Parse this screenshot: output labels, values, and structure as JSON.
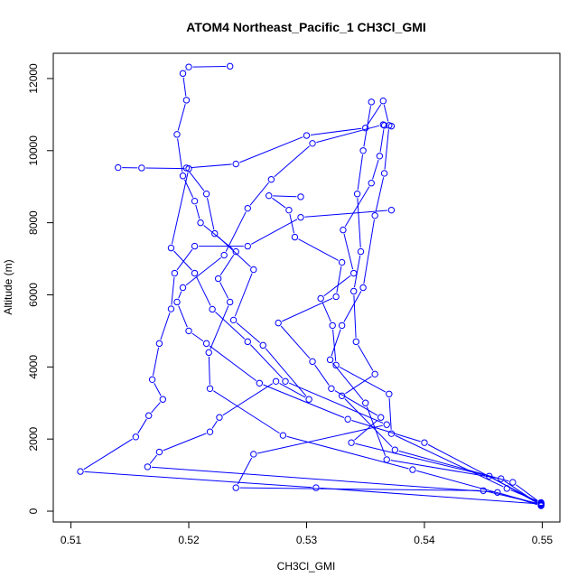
{
  "chart_data": {
    "type": "line",
    "title": "ATOM4 Northeast_Pacific_1 CH3Cl_GMI",
    "xlabel": "CH3Cl_GMI",
    "ylabel": "Altitude (m)",
    "xlim": [
      0.5085,
      0.5515
    ],
    "ylim": [
      -300,
      12700
    ],
    "x_ticks": [
      0.51,
      0.52,
      0.53,
      0.54,
      0.55
    ],
    "x_tick_labels": [
      "0.51",
      "0.52",
      "0.53",
      "0.54",
      "0.55"
    ],
    "y_ticks": [
      0,
      2000,
      4000,
      6000,
      8000,
      10000,
      12000
    ],
    "y_tick_labels": [
      "0",
      "2000",
      "4000",
      "6000",
      "8000",
      "10000",
      "12000"
    ],
    "grid": false,
    "legend": "none",
    "marker": "open-circle",
    "color": "#0000ff",
    "series": [
      {
        "values": [
          [
            0.5499,
            150
          ],
          [
            0.5462,
            520
          ],
          [
            0.5165,
            1230
          ],
          [
            0.5175,
            1640
          ],
          [
            0.5218,
            2200
          ],
          [
            0.5226,
            2600
          ],
          [
            0.5274,
            3600
          ],
          [
            0.5302,
            3100
          ],
          [
            0.5263,
            4600
          ],
          [
            0.5238,
            5300
          ],
          [
            0.5255,
            6700
          ],
          [
            0.5222,
            7700
          ],
          [
            0.5215,
            8800
          ],
          [
            0.5198,
            9520
          ],
          [
            0.524,
            9630
          ],
          [
            0.53,
            10420
          ],
          [
            0.535,
            10630
          ],
          [
            0.5365,
            11380
          ],
          [
            0.537,
            10700
          ],
          [
            0.5366,
            9370
          ],
          [
            0.5358,
            8200
          ],
          [
            0.5348,
            6200
          ],
          [
            0.533,
            5150
          ],
          [
            0.532,
            4200
          ],
          [
            0.535,
            3000
          ],
          [
            0.5368,
            1430
          ],
          [
            0.5465,
            900
          ],
          [
            0.5499,
            160
          ]
        ]
      },
      {
        "values": [
          [
            0.5499,
            170
          ],
          [
            0.5455,
            970
          ],
          [
            0.5338,
            1900
          ],
          [
            0.5363,
            2600
          ],
          [
            0.5321,
            3400
          ],
          [
            0.5305,
            4150
          ],
          [
            0.5276,
            5220
          ],
          [
            0.5325,
            5950
          ],
          [
            0.533,
            6900
          ],
          [
            0.529,
            7600
          ],
          [
            0.5285,
            8350
          ],
          [
            0.5268,
            8750
          ],
          [
            0.5295,
            8720
          ]
        ]
      },
      {
        "values": [
          [
            0.5499,
            180
          ],
          [
            0.539,
            1150
          ],
          [
            0.528,
            2100
          ],
          [
            0.5218,
            3400
          ],
          [
            0.5217,
            4400
          ],
          [
            0.5235,
            5800
          ],
          [
            0.5225,
            6450
          ],
          [
            0.524,
            7200
          ],
          [
            0.521,
            8000
          ],
          [
            0.5205,
            8600
          ],
          [
            0.5195,
            9300
          ],
          [
            0.519,
            10450
          ],
          [
            0.5198,
            11400
          ],
          [
            0.5195,
            12140
          ],
          [
            0.52,
            12320
          ],
          [
            0.5235,
            12340
          ]
        ]
      },
      {
        "values": [
          [
            0.5499,
            190
          ],
          [
            0.545,
            570
          ],
          [
            0.524,
            650
          ],
          [
            0.5255,
            1580
          ],
          [
            0.5368,
            2400
          ],
          [
            0.5282,
            3600
          ],
          [
            0.525,
            4700
          ],
          [
            0.522,
            5600
          ],
          [
            0.5205,
            6600
          ],
          [
            0.5185,
            7300
          ],
          [
            0.52,
            9500
          ],
          [
            0.516,
            9520
          ],
          [
            0.514,
            9530
          ]
        ]
      },
      {
        "values": [
          [
            0.5499,
            200
          ],
          [
            0.5308,
            650
          ],
          [
            0.5108,
            1100
          ],
          [
            0.5155,
            2060
          ],
          [
            0.5166,
            2650
          ],
          [
            0.5178,
            3100
          ],
          [
            0.5169,
            3650
          ],
          [
            0.5175,
            4650
          ],
          [
            0.5185,
            5610
          ],
          [
            0.5188,
            6600
          ],
          [
            0.5205,
            7350
          ],
          [
            0.525,
            7350
          ],
          [
            0.5295,
            8150
          ],
          [
            0.5372,
            8350
          ]
        ]
      },
      {
        "values": [
          [
            0.5499,
            210
          ],
          [
            0.54,
            1900
          ],
          [
            0.5335,
            2550
          ],
          [
            0.526,
            3550
          ],
          [
            0.5215,
            4650
          ],
          [
            0.52,
            5000
          ],
          [
            0.519,
            5800
          ],
          [
            0.5195,
            6200
          ],
          [
            0.523,
            7100
          ],
          [
            0.525,
            8400
          ],
          [
            0.527,
            9200
          ],
          [
            0.5305,
            10200
          ],
          [
            0.5365,
            10720
          ],
          [
            0.5372,
            10680
          ]
        ]
      },
      {
        "values": [
          [
            0.5499,
            220
          ],
          [
            0.5475,
            800
          ],
          [
            0.5375,
            1700
          ],
          [
            0.533,
            3200
          ],
          [
            0.5358,
            3800
          ],
          [
            0.5342,
            4700
          ],
          [
            0.534,
            6100
          ],
          [
            0.5346,
            7200
          ],
          [
            0.5343,
            8800
          ],
          [
            0.5348,
            10000
          ],
          [
            0.5355,
            11350
          ]
        ]
      },
      {
        "values": [
          [
            0.5499,
            240
          ],
          [
            0.547,
            630
          ],
          [
            0.5372,
            2150
          ],
          [
            0.537,
            3250
          ],
          [
            0.5325,
            4050
          ],
          [
            0.5322,
            5150
          ],
          [
            0.5312,
            5900
          ],
          [
            0.534,
            6600
          ],
          [
            0.5331,
            7800
          ],
          [
            0.5355,
            9100
          ],
          [
            0.5362,
            9850
          ],
          [
            0.5366,
            10700
          ]
        ]
      }
    ]
  }
}
